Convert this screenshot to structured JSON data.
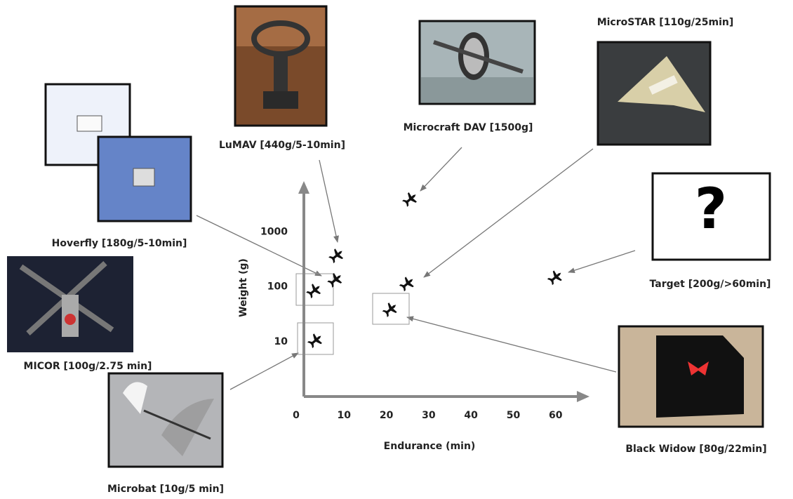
{
  "chart_data": {
    "type": "scatter",
    "x_label": "Endurance (min)",
    "y_label": "Weight (g)",
    "x": [
      25.7,
      8.3,
      8,
      3,
      3.3,
      25,
      21,
      60
    ],
    "values": [
      4000,
      375,
      135,
      86,
      10.6,
      115,
      39,
      150
    ],
    "color": "#111111",
    "xlim": [
      0,
      68
    ],
    "xticks": [
      0,
      10,
      20,
      30,
      40,
      50,
      60
    ],
    "ylim": [
      1,
      8000
    ],
    "yticks": [
      10,
      100,
      1000
    ],
    "log_y": true,
    "grid": false,
    "annotations": [
      "LuMAV [440g/5-10min]",
      "Microcraft DAV [1500g]",
      "MicroSTAR [110g/25min]",
      "Hoverfly [180g/5-10min]",
      "Target  [200g/>60min]",
      "?",
      "MICOR [100g/2.75 min]",
      "Black Widow [80g/22min]",
      "Microbat [10g/5 min]"
    ]
  }
}
